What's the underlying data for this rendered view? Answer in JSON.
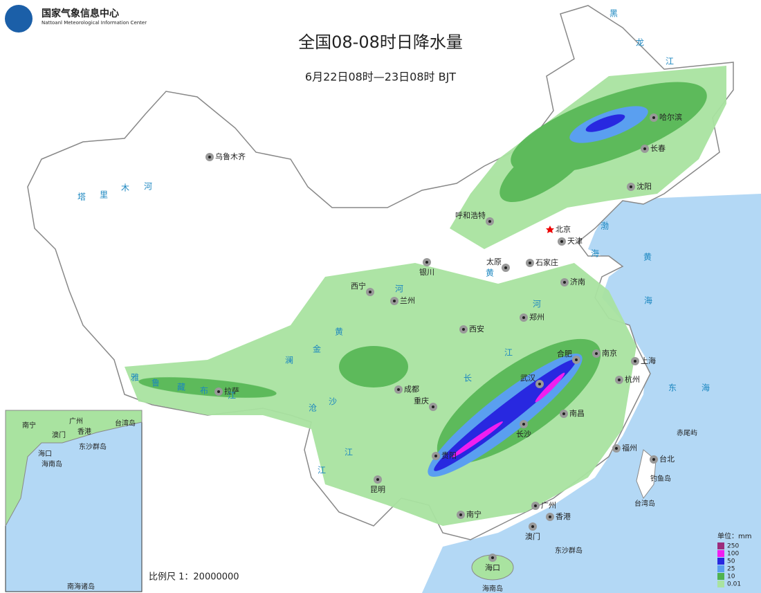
{
  "header": {
    "org_cn": "国家气象信息中心",
    "org_en": "Nattoanl Meteorological Information Center",
    "title": "全国08-08时日降水量",
    "subtitle": "6月22日08时—23日08时 BJT"
  },
  "cities": [
    "乌鲁木齐",
    "哈尔滨",
    "长春",
    "沈阳",
    "呼和浩特",
    "北京",
    "天津",
    "石家庄",
    "太原",
    "银川",
    "济南",
    "西宁",
    "兰州",
    "郑州",
    "西安",
    "南京",
    "合肥",
    "上海",
    "杭州",
    "武汉",
    "成都",
    "重庆",
    "南昌",
    "长沙",
    "贵阳",
    "福州",
    "台北",
    "昆明",
    "南宁",
    "广州",
    "香港",
    "澳门",
    "海口",
    "拉萨"
  ],
  "places": [
    "台湾岛",
    "钓鱼岛",
    "赤尾屿",
    "东沙群岛",
    "海南岛"
  ],
  "water_labels": [
    "黑",
    "龙",
    "江",
    "渤",
    "海",
    "黄",
    "海",
    "东",
    "海",
    "塔",
    "里",
    "木",
    "河",
    "黄",
    "河",
    "黄",
    "河",
    "长",
    "江",
    "金",
    "沙",
    "澜",
    "沧",
    "江",
    "雅",
    "鲁",
    "藏",
    "布",
    "江",
    "江"
  ],
  "legend": {
    "unit": "单位：mm",
    "items": [
      {
        "value": 250,
        "color": "#9c2d7c"
      },
      {
        "value": 100,
        "color": "#f01ef0"
      },
      {
        "value": 50,
        "color": "#2828e0"
      },
      {
        "value": 25,
        "color": "#5a9ff0"
      },
      {
        "value": 10,
        "color": "#4fb34f"
      },
      {
        "value": 0.01,
        "color": "#a9e3a0"
      }
    ]
  },
  "scale": "比例尺 1：20000000",
  "inset": {
    "labels": [
      "南宁",
      "广州",
      "台湾岛",
      "澳门",
      "香港",
      "东沙群岛",
      "海口",
      "海南岛",
      "南海诸岛"
    ]
  }
}
